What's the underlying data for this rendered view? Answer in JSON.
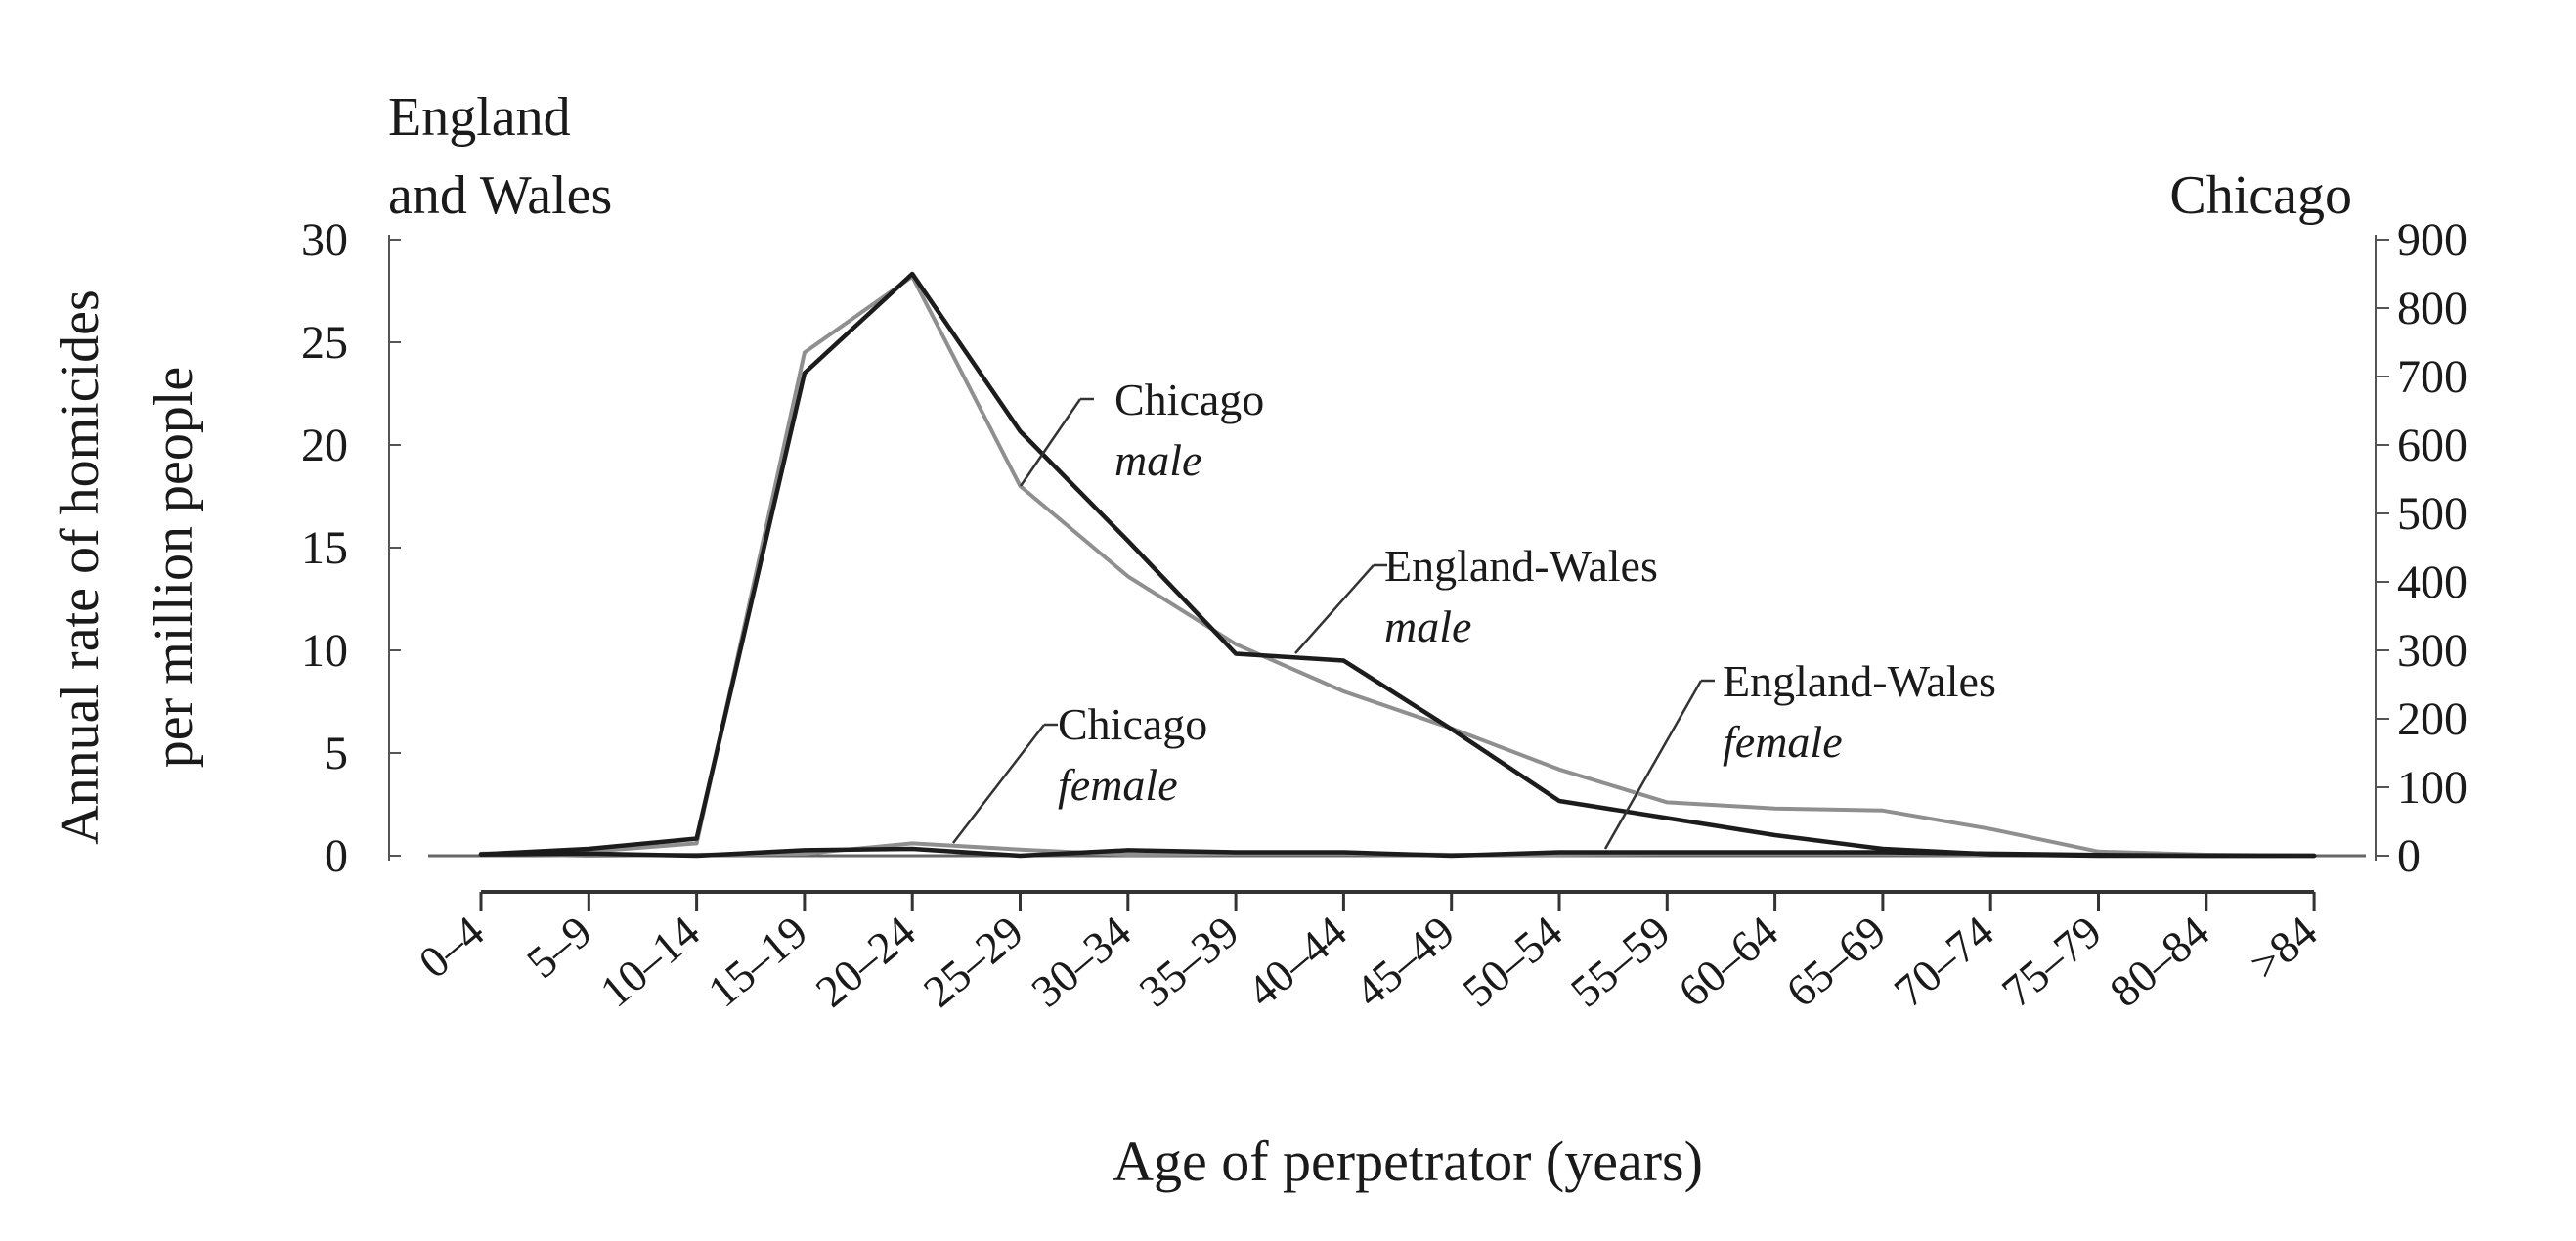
{
  "chart_data": {
    "type": "line",
    "title": "",
    "xlabel": "Age of perpetrator (years)",
    "ylabel": "Annual rate of homicides per million people",
    "left_axis_title": [
      "England",
      "and Wales"
    ],
    "right_axis_title": "Chicago",
    "categories": [
      "0–4",
      "5–9",
      "10–14",
      "15–19",
      "20–24",
      "25–29",
      "30–34",
      "35–39",
      "40–44",
      "45–49",
      "50–54",
      "55–59",
      "60–64",
      "65–69",
      "70–74",
      "75–79",
      "80–84",
      ">84"
    ],
    "y_left": {
      "ylim": [
        0,
        30
      ],
      "ticks": [
        "0",
        "5",
        "10",
        "15",
        "20",
        "25",
        "30"
      ]
    },
    "y_right": {
      "ylim": [
        0,
        900
      ],
      "ticks": [
        "0",
        "100",
        "200",
        "300",
        "400",
        "500",
        "600",
        "700",
        "800",
        "900"
      ]
    },
    "grid": false,
    "series": [
      {
        "name": "England-Wales male",
        "axis": "left",
        "color": "#8f8f8f",
        "label": [
          "England-Wales",
          "male"
        ],
        "values": [
          0.1,
          0.2,
          0.6,
          24.5,
          28.2,
          18.0,
          13.6,
          10.3,
          8.0,
          6.2,
          4.2,
          2.6,
          2.3,
          2.2,
          1.3,
          0.2,
          0.05,
          0.0
        ]
      },
      {
        "name": "Chicago male",
        "axis": "right",
        "color": "#1c1c1c",
        "label": [
          "Chicago",
          "male"
        ],
        "values": [
          2,
          10,
          25,
          705,
          850,
          620,
          460,
          295,
          285,
          185,
          80,
          55,
          30,
          10,
          2,
          0,
          0,
          0
        ]
      },
      {
        "name": "England-Wales female",
        "axis": "left",
        "color": "#8f8f8f",
        "label": [
          "England-Wales",
          "female"
        ],
        "values": [
          0.1,
          0.0,
          0.05,
          0.1,
          0.6,
          0.3,
          0.05,
          0.1,
          0.1,
          0.05,
          0.05,
          0.1,
          0.1,
          0.1,
          0.05,
          0.05,
          0.0,
          0.0
        ]
      },
      {
        "name": "Chicago female",
        "axis": "right",
        "color": "#1c1c1c",
        "label": [
          "Chicago",
          "female"
        ],
        "values": [
          2,
          3,
          0,
          8,
          10,
          0,
          8,
          5,
          5,
          0,
          5,
          5,
          5,
          5,
          3,
          1,
          0,
          0
        ]
      }
    ]
  }
}
